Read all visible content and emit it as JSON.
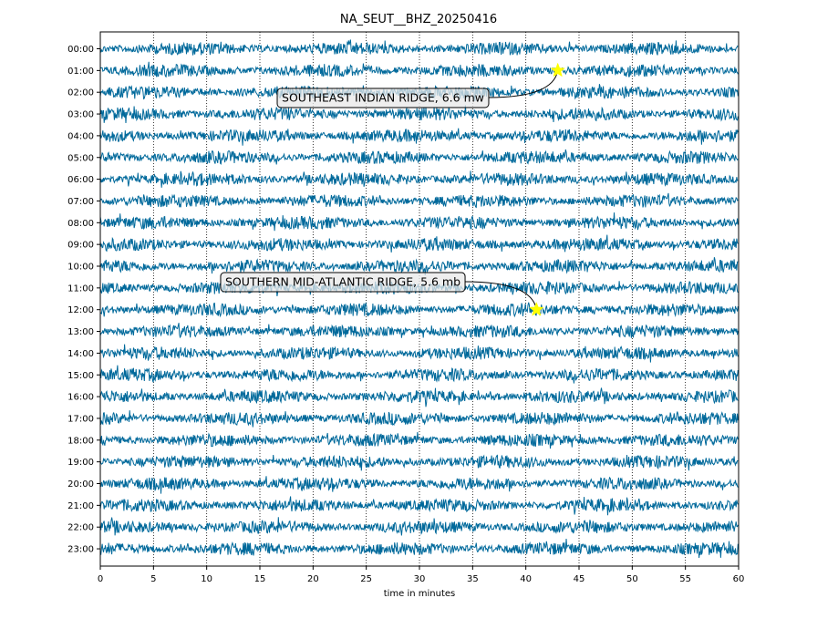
{
  "chart_data": {
    "type": "line",
    "title": "NA_SEUT__BHZ_20250416",
    "xlabel": "time in minutes",
    "ylabel": "",
    "xlim": [
      0,
      60
    ],
    "x_ticks": [
      0,
      5,
      10,
      15,
      20,
      25,
      30,
      35,
      40,
      45,
      50,
      55,
      60
    ],
    "vertical_grid": "dotted",
    "trace_color": "#00699b",
    "rows": [
      "00:00",
      "01:00",
      "02:00",
      "03:00",
      "04:00",
      "05:00",
      "06:00",
      "07:00",
      "08:00",
      "09:00",
      "10:00",
      "11:00",
      "12:00",
      "13:00",
      "14:00",
      "15:00",
      "16:00",
      "17:00",
      "18:00",
      "19:00",
      "20:00",
      "21:00",
      "22:00",
      "23:00"
    ],
    "events": [
      {
        "label": "SOUTHEAST INDIAN RIDGE, 6.6 mw",
        "row": "01:00",
        "minute": 43,
        "marker": "star",
        "marker_color": "#ffff00"
      },
      {
        "label": "SOUTHERN MID-ATLANTIC RIDGE, 5.6 mb",
        "row": "12:00",
        "minute": 41,
        "marker": "star",
        "marker_color": "#ffff00"
      }
    ]
  }
}
